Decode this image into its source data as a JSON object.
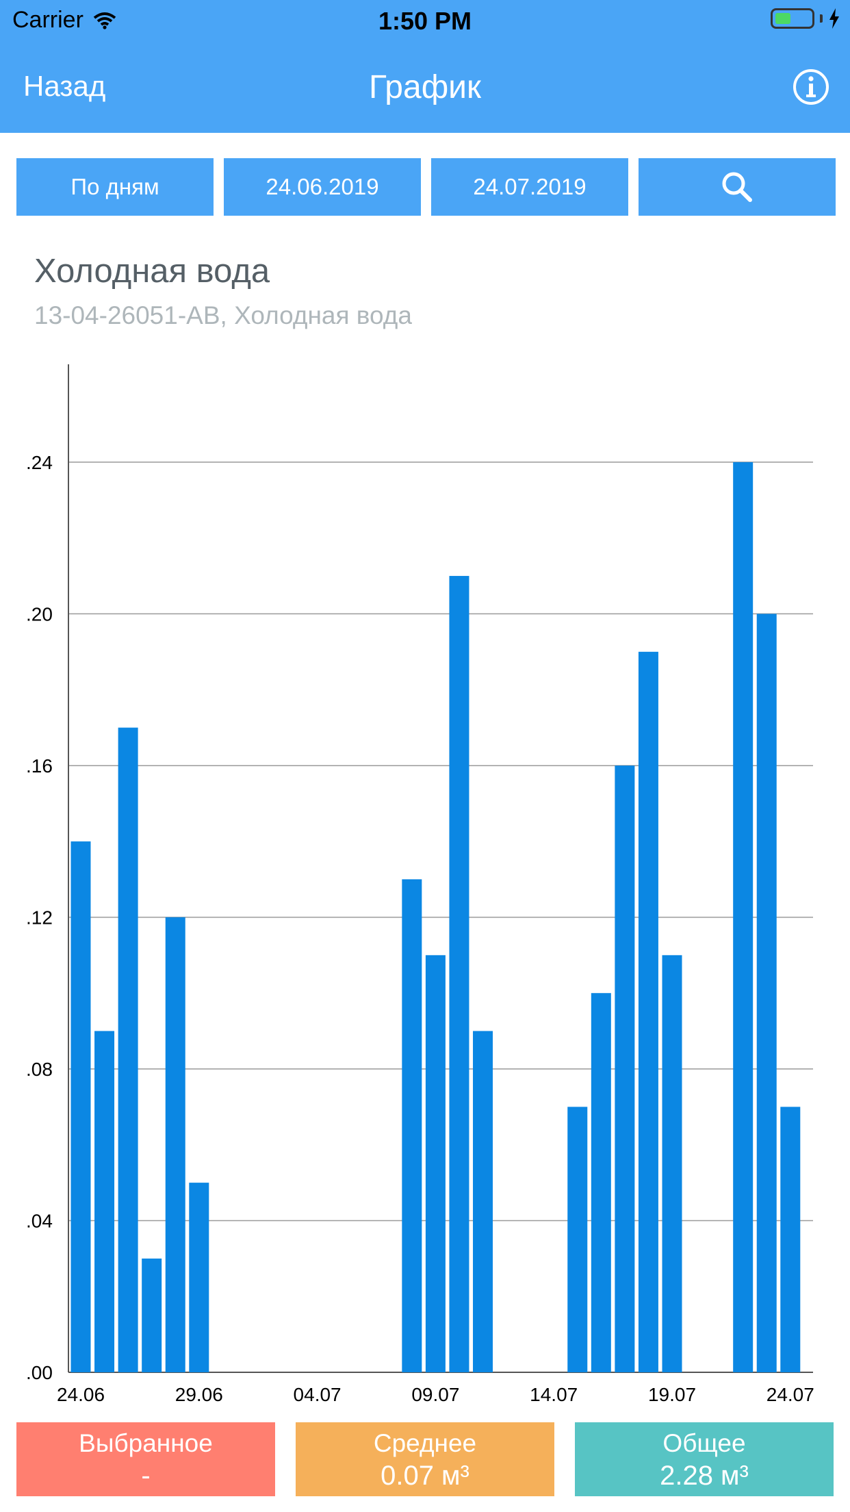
{
  "status_bar": {
    "carrier": "Carrier",
    "time": "1:50 PM"
  },
  "nav": {
    "back_label": "Назад",
    "title": "График",
    "info_icon": "info-icon"
  },
  "filters": {
    "period": "По дням",
    "date_from": "24.06.2019",
    "date_to": "24.07.2019",
    "search_icon": "search-icon"
  },
  "meter": {
    "title": "Холодная вода",
    "subtitle": "13-04-26051-АВ, Холодная вода"
  },
  "colors": {
    "accent": "#4aa5f6",
    "bar": "#0b87e3",
    "selected": "#ff7f70",
    "average": "#f5b05a",
    "total": "#57c4c4"
  },
  "chart_data": {
    "type": "bar",
    "categories": [
      "24.06",
      "25.06",
      "26.06",
      "27.06",
      "28.06",
      "29.06",
      "30.06",
      "01.07",
      "02.07",
      "03.07",
      "04.07",
      "05.07",
      "06.07",
      "07.07",
      "08.07",
      "09.07",
      "10.07",
      "11.07",
      "12.07",
      "13.07",
      "14.07",
      "15.07",
      "16.07",
      "17.07",
      "18.07",
      "19.07",
      "20.07",
      "21.07",
      "22.07",
      "23.07",
      "24.07"
    ],
    "values": [
      0.14,
      0.09,
      0.17,
      0.03,
      0.12,
      0.05,
      0,
      0,
      0,
      0,
      0,
      0,
      0,
      0,
      0.13,
      0.11,
      0.21,
      0.09,
      0,
      0,
      0,
      0.07,
      0.1,
      0.16,
      0.19,
      0.11,
      0,
      0,
      0.24,
      0.2,
      0.07
    ],
    "x_tick_labels": [
      "24.06",
      "29.06",
      "04.07",
      "09.07",
      "14.07",
      "19.07",
      "24.07"
    ],
    "y_tick_labels": [
      ".00",
      ".04",
      ".08",
      ".12",
      ".16",
      ".20",
      ".24"
    ],
    "y_ticks": [
      0,
      0.04,
      0.08,
      0.12,
      0.16,
      0.2,
      0.24
    ],
    "ylim": [
      0,
      0.264
    ],
    "grid": true
  },
  "cards": {
    "selected": {
      "title": "Выбранное",
      "value": "-"
    },
    "average": {
      "title": "Среднее",
      "value": "0.07 м³"
    },
    "total": {
      "title": "Общее",
      "value": "2.28 м³"
    }
  }
}
